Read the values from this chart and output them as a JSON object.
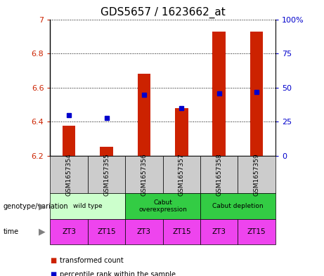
{
  "title": "GDS5657 / 1623662_at",
  "samples": [
    "GSM1657354",
    "GSM1657355",
    "GSM1657356",
    "GSM1657357",
    "GSM1657358",
    "GSM1657359"
  ],
  "red_values": [
    6.375,
    6.252,
    6.68,
    6.48,
    6.93,
    6.93
  ],
  "blue_values": [
    30,
    28,
    45,
    35,
    46,
    47
  ],
  "ylim_left": [
    6.2,
    7.0
  ],
  "ylim_right": [
    0,
    100
  ],
  "yticks_left": [
    6.2,
    6.4,
    6.6,
    6.8,
    7.0
  ],
  "ytick_labels_left": [
    "6.2",
    "6.4",
    "6.6",
    "6.8",
    "7"
  ],
  "yticks_right": [
    0,
    25,
    50,
    75,
    100
  ],
  "ytick_labels_right": [
    "0",
    "25",
    "50",
    "75",
    "100%"
  ],
  "bar_bottom": 6.2,
  "bar_color": "#cc2200",
  "square_color": "#0000cc",
  "geno_groups": [
    {
      "label": "wild type",
      "start": 0,
      "end": 2,
      "color": "#ccffcc"
    },
    {
      "label": "Cabut\noverexpression",
      "start": 2,
      "end": 4,
      "color": "#33cc44"
    },
    {
      "label": "Cabut depletion",
      "start": 4,
      "end": 6,
      "color": "#33cc44"
    }
  ],
  "time_labels": [
    "ZT3",
    "ZT15",
    "ZT3",
    "ZT15",
    "ZT3",
    "ZT15"
  ],
  "time_color": "#ee44ee",
  "sample_bg_color": "#cccccc",
  "legend_red_label": "transformed count",
  "legend_blue_label": "percentile rank within the sample",
  "left_geno_label": "genotype/variation",
  "left_time_label": "time",
  "title_fontsize": 11,
  "tick_fontsize": 8,
  "bar_width": 0.35
}
